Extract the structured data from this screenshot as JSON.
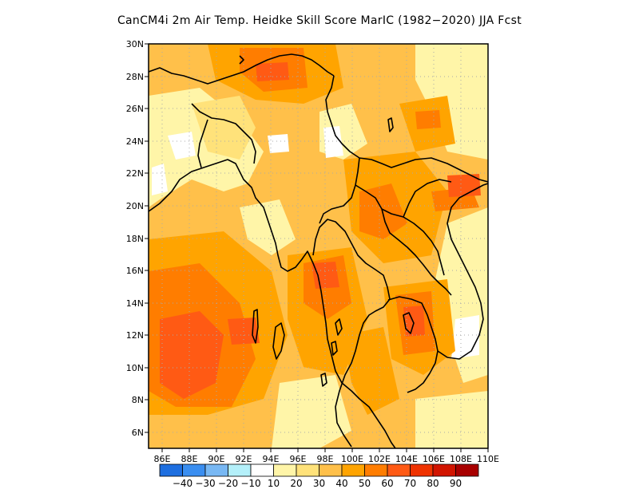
{
  "title": "CanCM4i  2m Air Temp. Heidke Skill Score MarIC (1982−2020) JJA Fcst",
  "map": {
    "lon_range": [
      85,
      110
    ],
    "lat_range": [
      5,
      30
    ],
    "lon_ticks": [
      "86E",
      "88E",
      "90E",
      "92E",
      "94E",
      "96E",
      "98E",
      "100E",
      "102E",
      "104E",
      "106E",
      "108E",
      "110E"
    ],
    "lat_ticks": [
      "6N",
      "8N",
      "10N",
      "12N",
      "14N",
      "16N",
      "18N",
      "20N",
      "22N",
      "24N",
      "26N",
      "28N",
      "30N"
    ],
    "grid": "dotted"
  },
  "colorbar": {
    "colors": [
      "#1e6fe0",
      "#3a8ef0",
      "#78b8f4",
      "#b4f0fa",
      "#ffffff",
      "#fff5a8",
      "#ffe27a",
      "#ffc04a",
      "#ffa400",
      "#ff7d00",
      "#ff5a14",
      "#ef3200",
      "#d11400",
      "#a80000"
    ],
    "labels": [
      "−40",
      "−30",
      "−20",
      "−10",
      "10",
      "20",
      "30",
      "40",
      "50",
      "60",
      "70",
      "80",
      "90"
    ]
  }
}
